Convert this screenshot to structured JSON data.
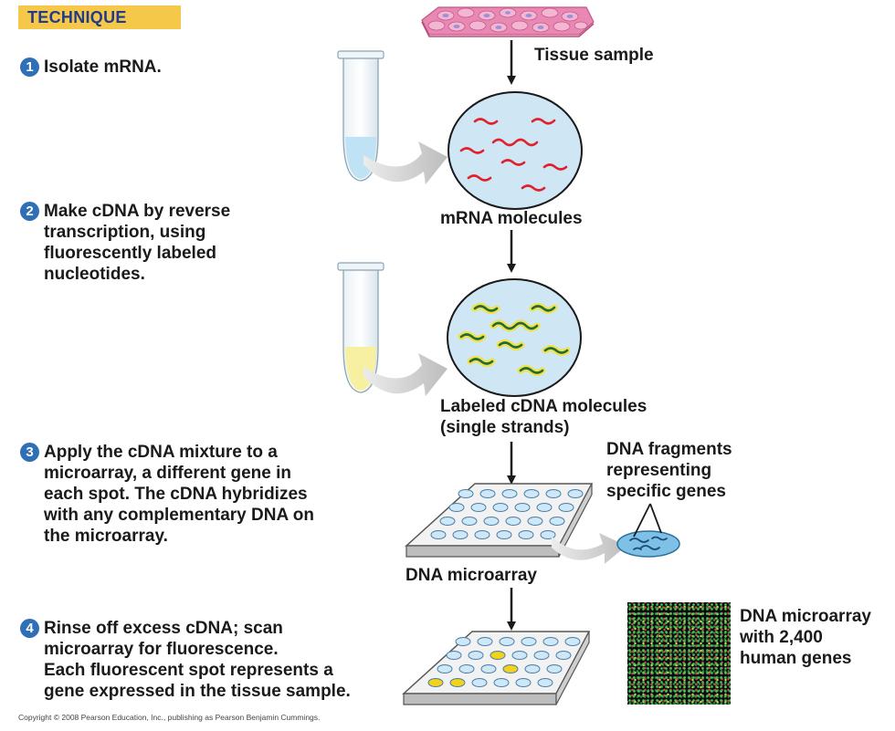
{
  "header": {
    "technique": "TECHNIQUE"
  },
  "steps": [
    {
      "num": "1",
      "text": "Isolate mRNA."
    },
    {
      "num": "2",
      "text": "Make cDNA by reverse\ntranscription, using\nfluorescently labeled\nnucleotides."
    },
    {
      "num": "3",
      "text": "Apply the cDNA mixture to a\nmicroarray, a different gene in\neach spot. The cDNA hybridizes\nwith any complementary DNA on\nthe microarray."
    },
    {
      "num": "4",
      "text": "Rinse off excess cDNA; scan\nmicroarray for fluorescence.\nEach fluorescent spot represents a\ngene expressed in the tissue sample."
    }
  ],
  "labels": {
    "tissue_sample": "Tissue sample",
    "mrna_molecules": "mRNA molecules",
    "labeled_cdna": "Labeled cDNA molecules\n(single strands)",
    "dna_fragments": "DNA fragments\nrepresenting\nspecific genes",
    "dna_microarray": "DNA microarray",
    "microarray_genes": "DNA microarray\nwith 2,400\nhuman genes"
  },
  "copyright": "Copyright © 2008 Pearson Education, Inc., publishing as Pearson Benjamin Cummings.",
  "colors": {
    "banner": "#f5c84a",
    "step_number": "#2f6fb5",
    "mrna_strand": "#e0202a",
    "cdna_strand": "#1f6b3a",
    "cdna_glow": "#f2e24a",
    "circle_fill": "#cfe6f5",
    "tube_liquid_blue": "#bfe3f5",
    "tube_liquid_yellow": "#f7f0a0",
    "spot_fill": "#cfe8f7",
    "fluorescent_spot": "#f2d21a",
    "tissue": "#e889b3",
    "cell_nucleus": "#9a92d8"
  }
}
